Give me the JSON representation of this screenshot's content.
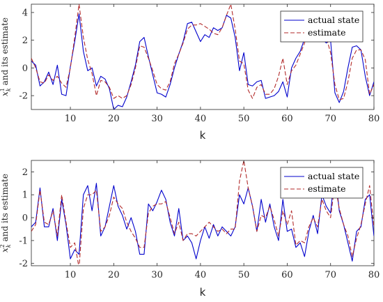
{
  "chart_data": [
    {
      "type": "line",
      "ylabel": "x_k^1 and its estimate",
      "ylabel_main": "x",
      "ylabel_sub": "k",
      "ylabel_sup": "1",
      "ylabel_rest": " and its estimate",
      "xlabel": "k",
      "xlim": [
        1,
        80
      ],
      "ylim": [
        -3,
        4.6
      ],
      "xticks": [
        10,
        20,
        30,
        40,
        50,
        60,
        70,
        80
      ],
      "yticks": [
        -2,
        0,
        2,
        4
      ],
      "grid": false,
      "legend_position": "top-right",
      "x": [
        1,
        2,
        3,
        4,
        5,
        6,
        7,
        8,
        9,
        10,
        11,
        12,
        13,
        14,
        15,
        16,
        17,
        18,
        19,
        20,
        21,
        22,
        23,
        24,
        25,
        26,
        27,
        28,
        29,
        30,
        31,
        32,
        33,
        34,
        35,
        36,
        37,
        38,
        39,
        40,
        41,
        42,
        43,
        44,
        45,
        46,
        47,
        48,
        49,
        50,
        51,
        52,
        53,
        54,
        55,
        56,
        57,
        58,
        59,
        60,
        61,
        62,
        63,
        64,
        65,
        66,
        67,
        68,
        69,
        70,
        71,
        72,
        73,
        74,
        75,
        76,
        77,
        78,
        79,
        80
      ],
      "series": [
        {
          "name": "actual state",
          "color": "#0000cc",
          "dash": "solid",
          "values": [
            0.5,
            0.2,
            -1.3,
            -1.0,
            -0.3,
            -1.2,
            0.2,
            -1.9,
            -2.0,
            0.1,
            1.9,
            3.9,
            1.2,
            -0.2,
            0.0,
            -1.3,
            -0.6,
            -0.8,
            -1.5,
            -3.0,
            -2.7,
            -2.8,
            -2.1,
            -1.0,
            0.2,
            1.9,
            2.2,
            0.8,
            -0.5,
            -1.8,
            -1.9,
            -2.1,
            -1.2,
            0.0,
            1.0,
            1.9,
            3.2,
            3.3,
            2.6,
            1.9,
            2.4,
            2.2,
            2.9,
            2.7,
            2.9,
            3.8,
            3.6,
            2.2,
            -0.2,
            1.1,
            -1.2,
            -1.3,
            -1.0,
            -0.9,
            -2.2,
            -2.1,
            -2.0,
            -1.7,
            -1.0,
            -2.1,
            0.0,
            0.7,
            1.2,
            2.1,
            3.8,
            4.0,
            2.2,
            2.1,
            1.8,
            2.0,
            -1.8,
            -2.5,
            -1.7,
            0.0,
            1.5,
            1.6,
            1.3,
            -0.6,
            -2.0,
            -1.0
          ]
        },
        {
          "name": "estimate",
          "color": "#b22a2a",
          "dash": "dashed",
          "values": [
            0.7,
            0.0,
            -1.0,
            -1.1,
            -0.5,
            -0.9,
            -0.6,
            -1.1,
            -1.4,
            0.0,
            2.2,
            4.6,
            2.2,
            0.6,
            -0.4,
            -2.0,
            -0.9,
            -1.0,
            -1.4,
            -2.2,
            -2.0,
            -2.2,
            -2.0,
            -1.2,
            0.0,
            1.6,
            1.5,
            0.7,
            -0.2,
            -1.2,
            -1.5,
            -1.6,
            -1.0,
            0.3,
            1.0,
            1.8,
            2.8,
            3.1,
            3.1,
            3.2,
            3.0,
            2.8,
            2.5,
            2.4,
            2.9,
            3.8,
            4.6,
            2.8,
            0.5,
            0.3,
            -1.6,
            -2.2,
            -1.4,
            -1.2,
            -1.9,
            -1.9,
            -1.5,
            -0.6,
            0.7,
            -1.2,
            -0.2,
            0.2,
            1.0,
            1.8,
            3.2,
            2.8,
            2.2,
            2.4,
            2.2,
            1.1,
            -1.2,
            -2.3,
            -2.2,
            -1.0,
            0.7,
            1.3,
            1.3,
            0.6,
            -1.9,
            -1.2
          ]
        }
      ]
    },
    {
      "type": "line",
      "ylabel": "x_k^2 and its estimate",
      "ylabel_main": "x",
      "ylabel_sub": "k",
      "ylabel_sup": "2",
      "ylabel_rest": " and its estimate",
      "xlabel": "k",
      "xlim": [
        1,
        80
      ],
      "ylim": [
        -2.1,
        2.5
      ],
      "xticks": [
        10,
        20,
        30,
        40,
        50,
        60,
        70,
        80
      ],
      "yticks": [
        -2,
        -1,
        0,
        1,
        2
      ],
      "grid": false,
      "legend_position": "top-right",
      "x": [
        1,
        2,
        3,
        4,
        5,
        6,
        7,
        8,
        9,
        10,
        11,
        12,
        13,
        14,
        15,
        16,
        17,
        18,
        19,
        20,
        21,
        22,
        23,
        24,
        25,
        26,
        27,
        28,
        29,
        30,
        31,
        32,
        33,
        34,
        35,
        36,
        37,
        38,
        39,
        40,
        41,
        42,
        43,
        44,
        45,
        46,
        47,
        48,
        49,
        50,
        51,
        52,
        53,
        54,
        55,
        56,
        57,
        58,
        59,
        60,
        61,
        62,
        63,
        64,
        65,
        66,
        67,
        68,
        69,
        70,
        71,
        72,
        73,
        74,
        75,
        76,
        77,
        78,
        79,
        80
      ],
      "series": [
        {
          "name": "actual state",
          "color": "#0000cc",
          "dash": "solid",
          "values": [
            -0.4,
            -0.2,
            1.3,
            -0.4,
            -0.4,
            0.4,
            -1.0,
            0.8,
            -0.3,
            -1.8,
            -1.4,
            -1.6,
            1.0,
            1.4,
            0.3,
            1.5,
            -0.8,
            -0.4,
            0.5,
            1.4,
            0.5,
            0.1,
            -0.5,
            0.0,
            -0.6,
            -1.6,
            -1.6,
            0.6,
            0.3,
            0.7,
            1.2,
            0.8,
            -0.2,
            -0.8,
            0.4,
            -1.0,
            -0.8,
            -1.1,
            -1.8,
            -1.0,
            -0.4,
            -0.9,
            -0.3,
            -0.8,
            -0.4,
            -0.6,
            -0.8,
            -0.4,
            1.0,
            0.6,
            1.3,
            0.5,
            -0.6,
            0.8,
            -0.2,
            0.6,
            -0.4,
            -1.0,
            0.8,
            -0.6,
            -0.5,
            -1.3,
            -1.1,
            -1.7,
            -0.6,
            0.1,
            -0.7,
            1.0,
            0.5,
            0.2,
            2.1,
            0.3,
            -0.3,
            -1.1,
            -1.9,
            -0.6,
            -0.4,
            0.8,
            1.0,
            -0.8
          ]
        },
        {
          "name": "estimate",
          "color": "#b22a2a",
          "dash": "dashed",
          "values": [
            -0.6,
            -0.3,
            1.2,
            -0.2,
            -0.3,
            0.3,
            -0.8,
            1.0,
            -0.2,
            -1.3,
            -1.1,
            -2.2,
            0.4,
            1.0,
            1.0,
            1.2,
            -0.6,
            -0.4,
            0.1,
            0.9,
            0.6,
            0.4,
            -0.2,
            -0.6,
            -0.9,
            -1.3,
            -1.3,
            0.2,
            0.5,
            0.6,
            0.6,
            0.7,
            0.0,
            -0.7,
            -0.2,
            -1.0,
            -0.7,
            -0.7,
            -0.8,
            -0.6,
            -0.4,
            -0.2,
            -0.4,
            -0.6,
            -0.5,
            -0.7,
            -0.5,
            -0.5,
            1.6,
            2.5,
            1.3,
            0.5,
            -0.6,
            0.1,
            0.0,
            0.5,
            -0.1,
            -0.8,
            0.3,
            -0.3,
            0.3,
            -1.2,
            -1.0,
            -1.1,
            -0.4,
            0.0,
            -0.4,
            0.8,
            0.3,
            0.0,
            1.5,
            0.4,
            -0.3,
            -0.8,
            -1.7,
            -0.9,
            -0.3,
            0.6,
            1.4,
            -0.4
          ]
        }
      ]
    }
  ]
}
